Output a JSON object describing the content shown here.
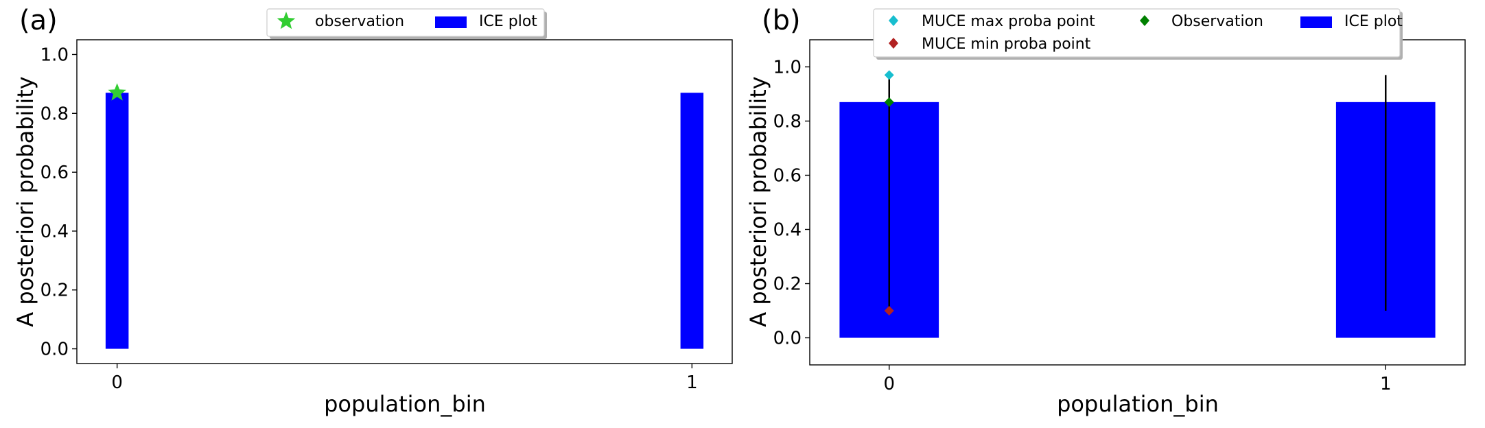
{
  "chart_data": [
    {
      "type": "bar",
      "panel_label": "(a)",
      "xlabel": "population_bin",
      "ylabel": "A posteriori probability",
      "categories": [
        "0",
        "1"
      ],
      "x": [
        0,
        1
      ],
      "xlim": [
        -0.07,
        1.07
      ],
      "ylim": [
        -0.05,
        1.05
      ],
      "yticks": [
        0.0,
        0.2,
        0.4,
        0.6,
        0.8,
        1.0
      ],
      "ytick_labels": [
        "0.0",
        "0.2",
        "0.4",
        "0.6",
        "0.8",
        "1.0"
      ],
      "bar_width": 0.04,
      "series": [
        {
          "name": "ICE plot",
          "kind": "bar",
          "color": "#0000ff",
          "values": [
            0.87,
            0.87
          ]
        },
        {
          "name": "observation",
          "kind": "marker-star",
          "color": "#32cd32",
          "points": [
            {
              "x": 0,
              "y": 0.87
            }
          ]
        }
      ],
      "legend": {
        "position": "top-center",
        "entries": [
          "observation",
          "ICE plot"
        ]
      }
    },
    {
      "type": "bar",
      "panel_label": "(b)",
      "xlabel": "population_bin",
      "ylabel": "A posteriori probability",
      "categories": [
        "0",
        "1"
      ],
      "x": [
        0,
        1
      ],
      "xlim": [
        -0.16,
        1.16
      ],
      "ylim": [
        -0.1,
        1.1
      ],
      "yticks": [
        0.0,
        0.2,
        0.4,
        0.6,
        0.8,
        1.0
      ],
      "ytick_labels": [
        "0.0",
        "0.2",
        "0.4",
        "0.6",
        "0.8",
        "1.0"
      ],
      "bar_width": 0.2,
      "series": [
        {
          "name": "ICE plot",
          "kind": "bar",
          "color": "#0000ff",
          "values": [
            0.87,
            0.87
          ]
        },
        {
          "name": "MUCE max proba point",
          "kind": "marker-diamond",
          "color": "#17becf",
          "points": [
            {
              "x": 0,
              "y": 0.97
            }
          ]
        },
        {
          "name": "MUCE min proba point",
          "kind": "marker-diamond",
          "color": "#b22222",
          "points": [
            {
              "x": 0,
              "y": 0.1
            }
          ]
        },
        {
          "name": "Observation",
          "kind": "marker-diamond",
          "color": "#008000",
          "points": [
            {
              "x": 0,
              "y": 0.87
            }
          ]
        },
        {
          "name": "range",
          "kind": "vline",
          "color": "#000000",
          "segments": [
            {
              "x": 0,
              "y0": 0.1,
              "y1": 0.97
            },
            {
              "x": 1,
              "y0": 0.1,
              "y1": 0.97
            }
          ]
        }
      ],
      "legend": {
        "position": "top-center",
        "entries": [
          "MUCE max proba point",
          "MUCE min proba point",
          "Observation",
          "ICE plot"
        ]
      }
    }
  ]
}
